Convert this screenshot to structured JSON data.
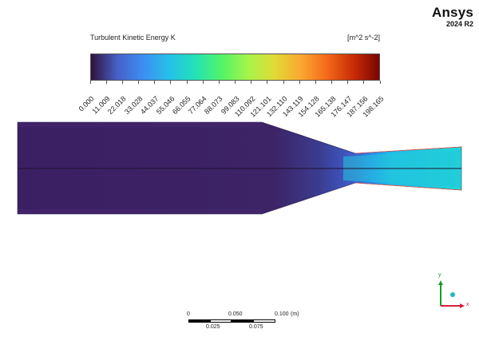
{
  "branding": {
    "name": "Ansys",
    "version": "2024 R2"
  },
  "legend": {
    "title": "Turbulent Kinetic Energy K",
    "units": "[m^2 s^-2]",
    "ticks": [
      "0.000",
      "11.009",
      "22.018",
      "33.028",
      "44.037",
      "55.046",
      "66.055",
      "77.064",
      "88.073",
      "99.083",
      "110.092",
      "121.101",
      "132.110",
      "143.119",
      "154.128",
      "165.138",
      "176.147",
      "187.156",
      "198.165"
    ],
    "min": 0.0,
    "max": 198.165
  },
  "scale_bar": {
    "top_labels": [
      "0",
      "0.050",
      "0.100"
    ],
    "bottom_labels": [
      "0.025",
      "0.075"
    ],
    "unit": "(m)"
  },
  "axes": {
    "x": "x",
    "y": "y"
  },
  "colors": {
    "low": "#30123b",
    "mid": "#24e2b6",
    "high": "#7a0403",
    "domain_base": "#3b1f63",
    "axis_x": "#d2223a",
    "axis_y": "#1a9a2a",
    "axis_z": "#1eb8c8"
  }
}
